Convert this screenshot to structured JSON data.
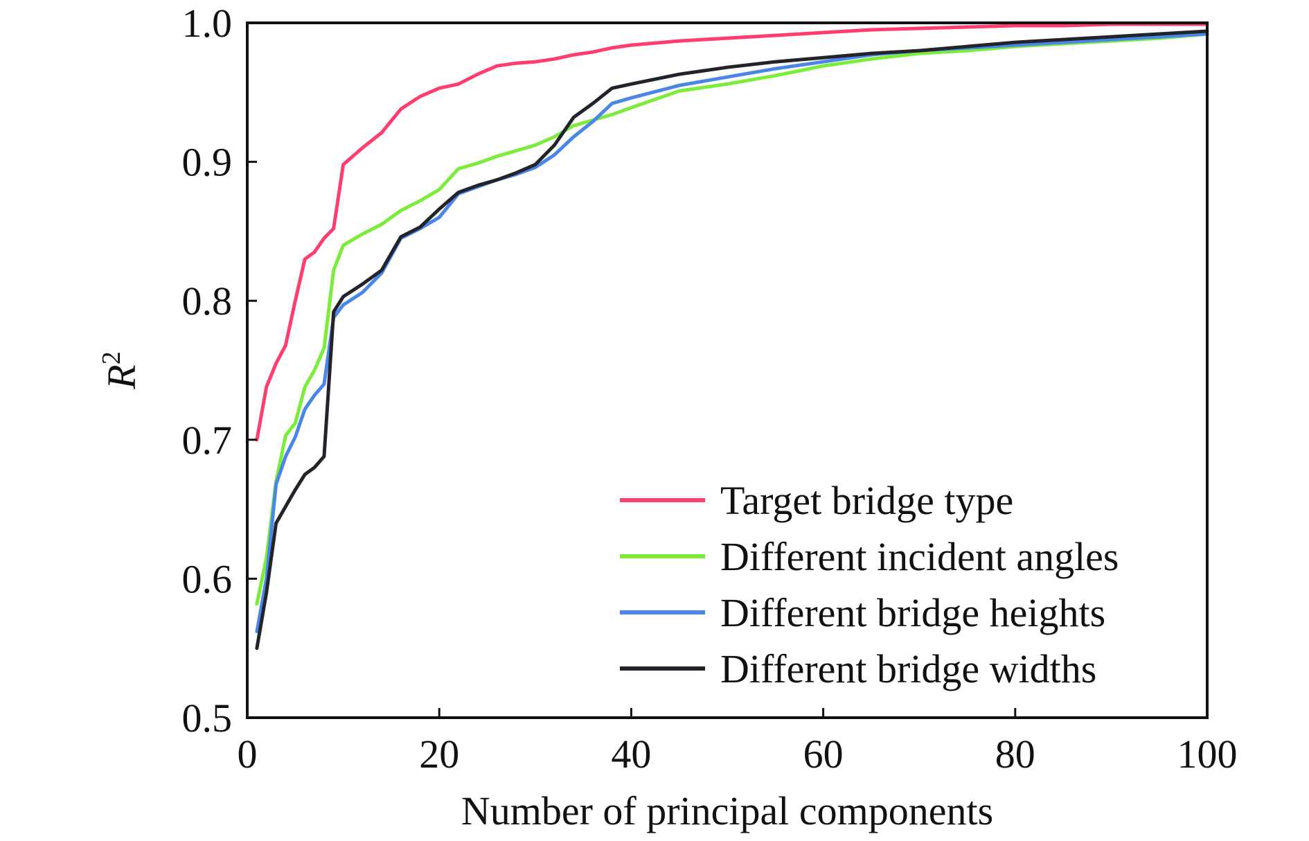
{
  "chart_data": {
    "type": "line",
    "xlabel": "Number of principal components",
    "ylabel": "R",
    "ylabel_superscript": "2",
    "xlim": [
      0,
      100
    ],
    "ylim": [
      0.5,
      1.0
    ],
    "xticks": [
      "0",
      "20",
      "40",
      "60",
      "80",
      "100"
    ],
    "yticks": [
      "0.5",
      "0.6",
      "0.7",
      "0.8",
      "0.9",
      "1.0"
    ],
    "grid": false,
    "legend_position": "bottom-right",
    "series": [
      {
        "name": "Target bridge type",
        "color": "#ff3d6e",
        "x": [
          1,
          2,
          3,
          4,
          5,
          6,
          7,
          8,
          9,
          10,
          12,
          14,
          16,
          18,
          20,
          22,
          24,
          26,
          28,
          30,
          32,
          34,
          36,
          38,
          40,
          45,
          50,
          55,
          60,
          65,
          70,
          75,
          80,
          85,
          90,
          95,
          100
        ],
        "y": [
          0.7,
          0.738,
          0.755,
          0.768,
          0.8,
          0.83,
          0.835,
          0.845,
          0.852,
          0.898,
          0.91,
          0.921,
          0.938,
          0.947,
          0.953,
          0.956,
          0.963,
          0.969,
          0.971,
          0.972,
          0.974,
          0.977,
          0.979,
          0.982,
          0.984,
          0.987,
          0.989,
          0.991,
          0.993,
          0.995,
          0.996,
          0.997,
          0.998,
          0.998,
          0.999,
          0.999,
          0.999
        ]
      },
      {
        "name": "Different incident angles",
        "color": "#7cec3a",
        "x": [
          1,
          2,
          3,
          4,
          5,
          6,
          7,
          8,
          9,
          10,
          12,
          14,
          16,
          18,
          20,
          22,
          24,
          26,
          28,
          30,
          32,
          34,
          36,
          38,
          40,
          45,
          50,
          55,
          60,
          65,
          70,
          75,
          80,
          85,
          90,
          95,
          100
        ],
        "y": [
          0.582,
          0.615,
          0.67,
          0.703,
          0.712,
          0.738,
          0.75,
          0.766,
          0.822,
          0.84,
          0.848,
          0.855,
          0.865,
          0.872,
          0.88,
          0.895,
          0.899,
          0.904,
          0.908,
          0.912,
          0.918,
          0.926,
          0.93,
          0.934,
          0.939,
          0.951,
          0.956,
          0.962,
          0.969,
          0.974,
          0.978,
          0.98,
          0.983,
          0.985,
          0.987,
          0.989,
          0.992
        ]
      },
      {
        "name": "Different bridge heights",
        "color": "#4a86e8",
        "x": [
          1,
          2,
          3,
          4,
          5,
          6,
          7,
          8,
          9,
          10,
          12,
          14,
          16,
          18,
          20,
          22,
          24,
          26,
          28,
          30,
          32,
          34,
          36,
          38,
          40,
          45,
          50,
          55,
          60,
          65,
          70,
          75,
          80,
          85,
          90,
          95,
          100
        ],
        "y": [
          0.562,
          0.6,
          0.668,
          0.688,
          0.702,
          0.722,
          0.732,
          0.74,
          0.788,
          0.797,
          0.806,
          0.82,
          0.845,
          0.852,
          0.86,
          0.877,
          0.882,
          0.887,
          0.891,
          0.896,
          0.905,
          0.918,
          0.929,
          0.942,
          0.946,
          0.955,
          0.961,
          0.967,
          0.972,
          0.977,
          0.98,
          0.982,
          0.984,
          0.986,
          0.988,
          0.99,
          0.992
        ]
      },
      {
        "name": "Different bridge widths",
        "color": "#23232b",
        "x": [
          1,
          2,
          3,
          4,
          5,
          6,
          7,
          8,
          9,
          10,
          12,
          14,
          16,
          18,
          20,
          22,
          24,
          26,
          28,
          30,
          32,
          34,
          36,
          38,
          40,
          45,
          50,
          55,
          60,
          65,
          70,
          75,
          80,
          85,
          90,
          95,
          100
        ],
        "y": [
          0.55,
          0.59,
          0.64,
          0.652,
          0.664,
          0.675,
          0.68,
          0.688,
          0.792,
          0.803,
          0.812,
          0.822,
          0.846,
          0.853,
          0.866,
          0.878,
          0.883,
          0.887,
          0.892,
          0.898,
          0.912,
          0.932,
          0.942,
          0.953,
          0.956,
          0.963,
          0.968,
          0.972,
          0.975,
          0.978,
          0.98,
          0.983,
          0.986,
          0.988,
          0.99,
          0.992,
          0.994
        ]
      }
    ]
  }
}
